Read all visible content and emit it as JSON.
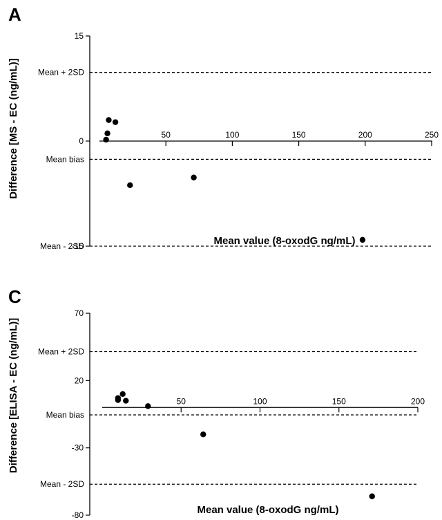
{
  "chart_data": [
    {
      "type": "scatter",
      "panel_label": "A",
      "xlabel": "Mean value (8-oxodG ng/mL)",
      "ylabel": "Difference [MS - EC (ng/mL)]",
      "xlim": [
        0,
        250
      ],
      "ylim": [
        -15,
        15
      ],
      "x_ticks": [
        50,
        100,
        150,
        200,
        250
      ],
      "x_tick_labels": [
        "50",
        "100",
        "150",
        "200",
        "250"
      ],
      "y_ticks": [
        15,
        0,
        -15
      ],
      "y_tick_labels": [
        "15",
        "0",
        "-15"
      ],
      "grid": false,
      "legend": "none",
      "reference_lines": [
        {
          "label": "Mean + 2SD",
          "value": 9.8
        },
        {
          "label": "Mean bias",
          "value": -2.6
        },
        {
          "label": "Mean - 2SD",
          "value": -15.0
        }
      ],
      "points": [
        {
          "x": 5,
          "y": 0.2
        },
        {
          "x": 6,
          "y": 1.1
        },
        {
          "x": 7,
          "y": 3.0
        },
        {
          "x": 12,
          "y": 2.7
        },
        {
          "x": 23,
          "y": -6.3
        },
        {
          "x": 71,
          "y": -5.2
        },
        {
          "x": 198,
          "y": -14.1
        }
      ]
    },
    {
      "type": "scatter",
      "panel_label": "C",
      "xlabel": "Mean value (8-oxodG ng/mL)",
      "ylabel": "Difference [ELISA - EC (ng/mL)]",
      "xlim": [
        0,
        200
      ],
      "ylim": [
        -80,
        70
      ],
      "x_ticks": [
        50,
        100,
        150,
        200
      ],
      "x_tick_labels": [
        "50",
        "100",
        "150",
        "200"
      ],
      "y_ticks": [
        70,
        20,
        -30,
        -80
      ],
      "y_tick_labels": [
        "70",
        "20",
        "-30",
        "-80"
      ],
      "grid": false,
      "legend": "none",
      "reference_lines": [
        {
          "label": "Mean + 2SD",
          "value": 41.5
        },
        {
          "label": "Mean bias",
          "value": -5.5
        },
        {
          "label": "Mean - 2SD",
          "value": -57.0
        }
      ],
      "points": [
        {
          "x": 10,
          "y": 7.0
        },
        {
          "x": 10,
          "y": 5.5
        },
        {
          "x": 13,
          "y": 10.0
        },
        {
          "x": 15,
          "y": 5.0
        },
        {
          "x": 29,
          "y": 1.0
        },
        {
          "x": 64,
          "y": -20.0
        },
        {
          "x": 171,
          "y": -66.0
        }
      ]
    }
  ]
}
